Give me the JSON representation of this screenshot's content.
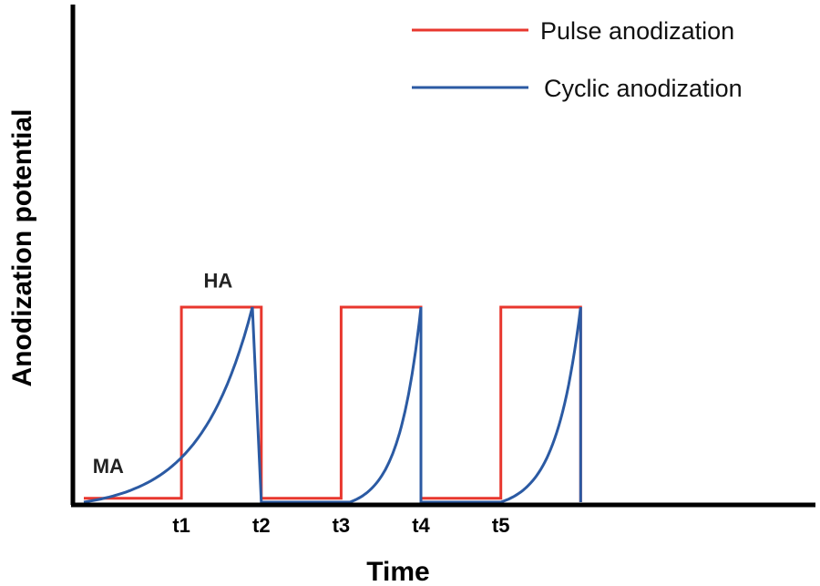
{
  "chart_data": {
    "type": "line",
    "title": "",
    "xlabel": "Time",
    "ylabel": "Anodization potential",
    "xlim": [
      0,
      8
    ],
    "ylim": [
      0,
      1
    ],
    "x_ticks": [
      {
        "x": 1.1,
        "label": "t1"
      },
      {
        "x": 2.0,
        "label": "t2"
      },
      {
        "x": 2.9,
        "label": "t3"
      },
      {
        "x": 3.8,
        "label": "t4"
      },
      {
        "x": 4.7,
        "label": "t5"
      }
    ],
    "annotations": [
      {
        "text": "MA",
        "x": 0.1,
        "y": 0.15
      },
      {
        "text": "HA",
        "x": 1.35,
        "y": 1.1
      }
    ],
    "legend_position": "top-right",
    "series": [
      {
        "name": "Pulse anodization",
        "color": "#e8372e",
        "x": [
          0,
          1.1,
          1.1,
          2.0,
          2.0,
          2.9,
          2.9,
          3.8,
          3.8,
          4.7,
          4.7,
          5.6,
          5.6
        ],
        "y": [
          0.02,
          0.02,
          1,
          1,
          0.02,
          0.02,
          1,
          1,
          0.02,
          0.02,
          1,
          1,
          0
        ]
      },
      {
        "name": "Cyclic anodization",
        "color": "#2b5aa3",
        "curve": "exponential-rise-then-drop",
        "x": [
          0,
          1.9,
          2.0,
          3.0,
          3.8,
          3.8,
          4.7,
          5.6,
          5.6
        ],
        "y": [
          0,
          1,
          0,
          0,
          1,
          0,
          0,
          1,
          0
        ]
      }
    ]
  },
  "icons": {
    "legend_swatch_pulse": "red-line",
    "legend_swatch_cyclic": "blue-line"
  }
}
